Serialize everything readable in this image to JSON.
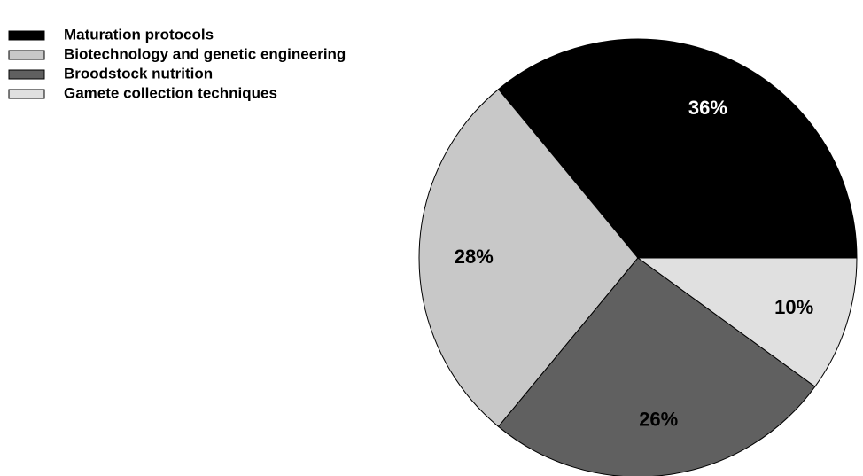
{
  "chart_data": {
    "type": "pie",
    "categories": [
      "Maturation protocols",
      "Biotechnology and genetic engineering",
      "Broodstock nutrition",
      "Gamete collection techniques"
    ],
    "values": [
      36,
      28,
      26,
      10
    ],
    "value_labels": [
      "36%",
      "28%",
      "26%",
      "10%"
    ],
    "colors": [
      "#000000",
      "#c8c8c8",
      "#606060",
      "#e0e0e0"
    ],
    "legend": "upper left"
  }
}
